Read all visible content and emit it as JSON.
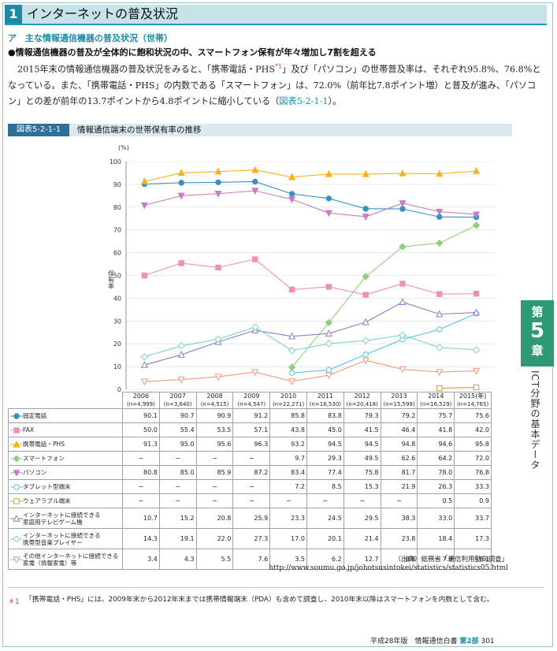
{
  "header": {
    "number": "1",
    "title": "インターネットの普及状況"
  },
  "section": {
    "title": "ア　主な情報通信機器の普及状況（世帯）"
  },
  "bullet": "●情報通信機器の普及が全体的に飽和状況の中、スマートフォン保有が年々増加し7割を超える",
  "paragraph": {
    "part1": "2015年末の情報通信機器の普及状況をみると、「携帯電話・PHS",
    "note_mark": "*1",
    "part2": "」及び「パソコン」の世帯普及率は、それぞれ95.8%、76.8%となっている。また、「携帯電話・PHS」の内数である「スマートフォン」は、72.0%（前年比7.8ポイント増）と普及が進み、「パソコン」との差が前年の13.7ポイントから4.8ポイントに縮小している（",
    "ref": "図表5-2-1-1",
    "part3": "）。"
  },
  "figure": {
    "label": "図表5-2-1-1",
    "title": "情報通信端末の世帯保有率の推移"
  },
  "chart_data": {
    "type": "line",
    "ylabel": "保有率",
    "yunit": "(%)",
    "ylim": [
      0,
      100
    ],
    "yticks": [
      "0",
      "10",
      "20",
      "30",
      "40",
      "50",
      "60",
      "70",
      "80",
      "90",
      "100"
    ],
    "year_unit": "(年)",
    "x": [
      "2006",
      "2007",
      "2008",
      "2009",
      "2010",
      "2011",
      "2012",
      "2013",
      "2014",
      "2015"
    ],
    "n": [
      "(n=4,999)",
      "(n=3,640)",
      "(n=4,515)",
      "(n=4,547)",
      "(n=22,271)",
      "(n=16,530)",
      "(n=20,418)",
      "(n=15,599)",
      "(n=16,529)",
      "(n=14,765)"
    ],
    "series": [
      {
        "name": "固定電話",
        "marker": "circle",
        "color": "#3a8fc4",
        "values": [
          90.1,
          90.7,
          90.9,
          91.2,
          85.8,
          83.8,
          79.3,
          79.2,
          75.7,
          75.6
        ],
        "display": [
          "90.1",
          "90.7",
          "90.9",
          "91.2",
          "85.8",
          "83.8",
          "79.3",
          "79.2",
          "75.7",
          "75.6"
        ]
      },
      {
        "name": "FAX",
        "marker": "square",
        "color": "#ef8fb4",
        "values": [
          50.0,
          55.4,
          53.5,
          57.1,
          43.8,
          45.0,
          41.5,
          46.4,
          41.8,
          42.0
        ],
        "display": [
          "50.0",
          "55.4",
          "53.5",
          "57.1",
          "43.8",
          "45.0",
          "41.5",
          "46.4",
          "41.8",
          "42.0"
        ]
      },
      {
        "name": "携帯電話・PHS",
        "marker": "triangle",
        "color": "#f5b21f",
        "values": [
          91.3,
          95.0,
          95.6,
          96.3,
          93.2,
          94.5,
          94.5,
          94.8,
          94.6,
          95.8
        ],
        "display": [
          "91.3",
          "95.0",
          "95.6",
          "96.3",
          "93.2",
          "94.5",
          "94.5",
          "94.8",
          "94.6",
          "95.8"
        ]
      },
      {
        "name": "スマートフォン",
        "marker": "diamond",
        "color": "#8fcf82",
        "values": [
          null,
          null,
          null,
          null,
          9.7,
          29.3,
          49.5,
          62.6,
          64.2,
          72.0
        ],
        "display": [
          "−",
          "−",
          "−",
          "−",
          "9.7",
          "29.3",
          "49.5",
          "62.6",
          "64.2",
          "72.0"
        ]
      },
      {
        "name": "パソコン",
        "marker": "triangle-down",
        "color": "#c77fc3",
        "values": [
          80.8,
          85.0,
          85.9,
          87.2,
          83.4,
          77.4,
          75.8,
          81.7,
          78.0,
          76.8
        ],
        "display": [
          "80.8",
          "85.0",
          "85.9",
          "87.2",
          "83.4",
          "77.4",
          "75.8",
          "81.7",
          "78.0",
          "76.8"
        ]
      },
      {
        "name": "タブレット型端末",
        "marker": "circle-open",
        "color": "#5bc0e0",
        "values": [
          null,
          null,
          null,
          null,
          7.2,
          8.5,
          15.3,
          21.9,
          26.3,
          33.3
        ],
        "display": [
          "−",
          "−",
          "−",
          "−",
          "7.2",
          "8.5",
          "15.3",
          "21.9",
          "26.3",
          "33.3"
        ]
      },
      {
        "name": "ウェアラブル端末",
        "marker": "square-open",
        "color": "#c9a23a",
        "values": [
          null,
          null,
          null,
          null,
          null,
          null,
          null,
          null,
          0.5,
          0.9
        ],
        "display": [
          "−",
          "−",
          "−",
          "−",
          "−",
          "−",
          "−",
          "−",
          "0.5",
          "0.9"
        ]
      },
      {
        "name": "インターネットに接続できる家庭用テレビゲーム機",
        "label_lines": [
          "インターネットに接続できる",
          "家庭用テレビゲーム機"
        ],
        "marker": "triangle-open",
        "color": "#8a7fc0",
        "values": [
          10.7,
          15.2,
          20.8,
          25.9,
          23.3,
          24.5,
          29.5,
          38.3,
          33.0,
          33.7
        ],
        "display": [
          "10.7",
          "15.2",
          "20.8",
          "25.9",
          "23.3",
          "24.5",
          "29.5",
          "38.3",
          "33.0",
          "33.7"
        ]
      },
      {
        "name": "インターネットに接続できる携帯型音楽プレイヤー",
        "label_lines": [
          "インターネットに接続できる",
          "携帯型音楽プレイヤー"
        ],
        "marker": "diamond-open",
        "color": "#7fd3c6",
        "values": [
          14.3,
          19.1,
          22.0,
          27.3,
          17.0,
          20.1,
          21.4,
          23.8,
          18.4,
          17.3
        ],
        "display": [
          "14.3",
          "19.1",
          "22.0",
          "27.3",
          "17.0",
          "20.1",
          "21.4",
          "23.8",
          "18.4",
          "17.3"
        ]
      },
      {
        "name": "その他インターネットに接続できる家電（情報家電）等",
        "label_lines": [
          "その他インターネットに接続できる",
          "家電（情報家電）等"
        ],
        "marker": "triangle-down-open",
        "color": "#f29a7e",
        "values": [
          3.4,
          4.3,
          5.5,
          7.6,
          3.5,
          6.2,
          12.7,
          8.8,
          7.6,
          8.1
        ],
        "display": [
          "3.4",
          "4.3",
          "5.5",
          "7.6",
          "3.5",
          "6.2",
          "12.7",
          "8.8",
          "7.6",
          "8.1"
        ]
      }
    ]
  },
  "source": {
    "line1": "（出典）総務省「通信利用動向調査」",
    "line2": "http://www.soumu.go.jp/johotsusintokei/statistics/statistics05.html"
  },
  "footnote": {
    "mark": "＊1",
    "text": "「携帯電話・PHS」には、2009年末から2012年末までは携帯情報端末（PDA）も含めて調査し、2010年末以降はスマートフォンを内数として含む。"
  },
  "footer": {
    "edition": "平成28年版　情報通信白書",
    "part": "第2部",
    "page": "301"
  },
  "side_tab": {
    "dai": "第",
    "num": "5",
    "sho": "章",
    "text": "ICT分野の基本データ"
  }
}
